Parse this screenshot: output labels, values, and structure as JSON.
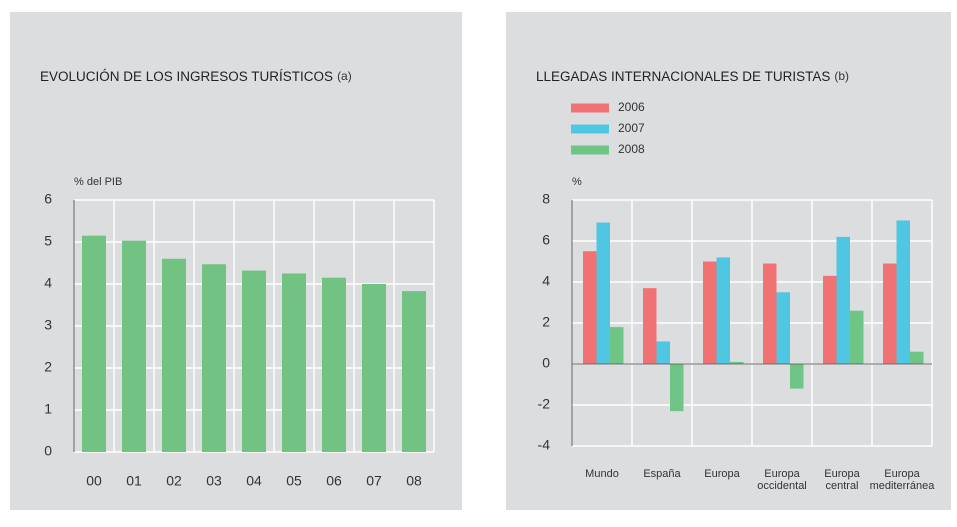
{
  "chart_data": [
    {
      "type": "bar",
      "title": "EVOLUCIÓN DE LOS INGRESOS TURÍSTICOS",
      "title_note": "(a)",
      "y_label": "% del PIB",
      "categories": [
        "00",
        "01",
        "02",
        "03",
        "04",
        "05",
        "06",
        "07",
        "08"
      ],
      "series": [
        {
          "name": null,
          "color": "#72c283",
          "values": [
            5.15,
            5.03,
            4.6,
            4.47,
            4.32,
            4.25,
            4.15,
            4.0,
            3.83
          ]
        }
      ],
      "ylim": [
        0,
        6
      ],
      "yticks": [
        0,
        1,
        2,
        3,
        4,
        5,
        6
      ],
      "grid": true
    },
    {
      "type": "bar",
      "title": "LLEGADAS INTERNACIONALES DE TURISTAS",
      "title_note": "(b)",
      "y_label": "%",
      "categories": [
        [
          "Mundo"
        ],
        [
          "España"
        ],
        [
          "Europa"
        ],
        [
          "Europa",
          "occidental"
        ],
        [
          "Europa",
          "central"
        ],
        [
          "Europa",
          "mediterránea"
        ]
      ],
      "series": [
        {
          "name": "2006",
          "color": "#f07272",
          "values": [
            5.5,
            3.7,
            5.0,
            4.9,
            4.3,
            4.9
          ]
        },
        {
          "name": "2007",
          "color": "#4fc6e2",
          "values": [
            6.9,
            1.1,
            5.2,
            3.5,
            6.2,
            7.0
          ]
        },
        {
          "name": "2008",
          "color": "#6fc585",
          "values": [
            1.8,
            -2.3,
            0.1,
            -1.2,
            2.6,
            0.6
          ]
        }
      ],
      "ylim": [
        -4,
        8
      ],
      "yticks": [
        -4,
        -2,
        0,
        2,
        4,
        6,
        8
      ],
      "grid": true,
      "legend": "top-left"
    }
  ]
}
